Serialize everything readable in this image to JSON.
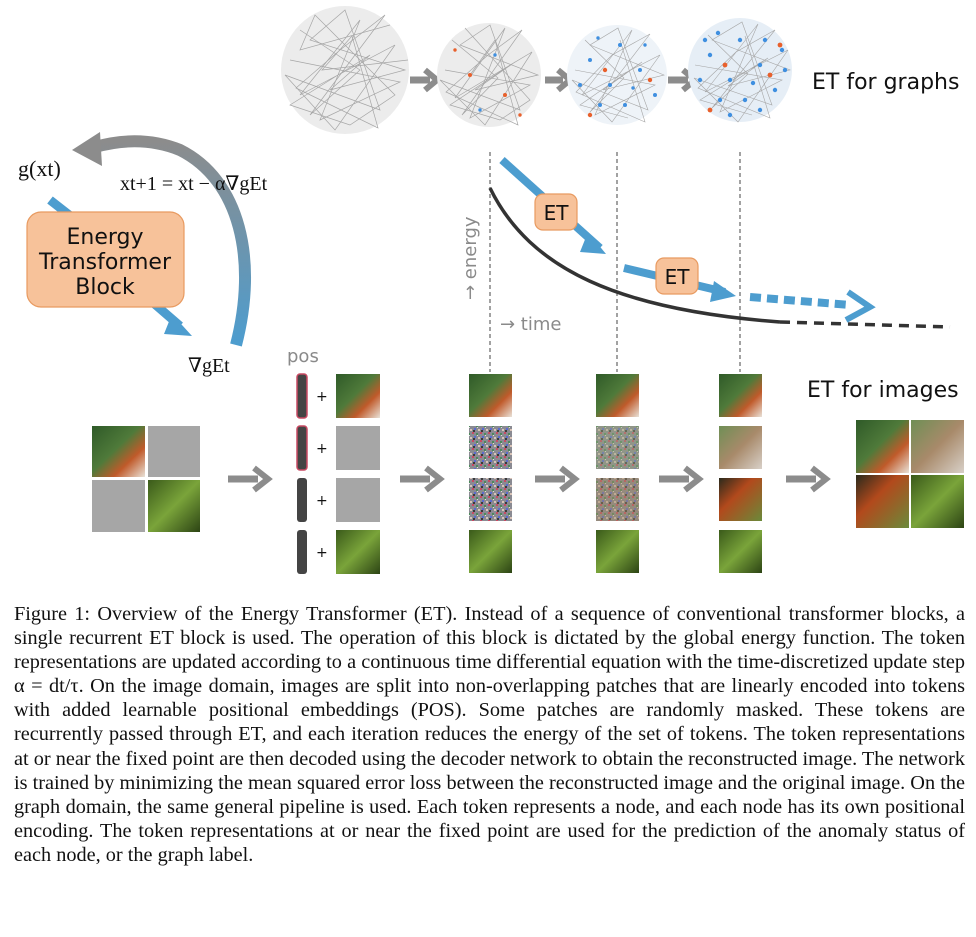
{
  "figure": {
    "label_graphs": "ET for graphs",
    "label_images": "ET for images",
    "label_pos": "pos",
    "label_energy": "→ energy",
    "label_time": "→ time",
    "et_label": "ET",
    "block_label_lines": [
      "Energy",
      "Transformer",
      "Block"
    ],
    "g_of_x": "g(xt)",
    "update_rule": "xt+1 = xt − α∇gEt",
    "gradient": "∇gEt",
    "plus_sign": "+"
  },
  "caption": {
    "figure_label": "Figure 1:",
    "text": "Overview of the Energy Transformer (ET). Instead of a sequence of conventional transformer blocks, a single recurrent ET block is used. The operation of this block is dictated by the global energy function. The token representations are updated according to a continuous time differential equation with the time-discretized update step α = dt/τ. On the image domain, images are split into non-overlapping patches that are linearly encoded into tokens with added learnable positional embeddings (POS). Some patches are randomly masked. These tokens are recurrently passed through ET, and each iteration reduces the energy of the set of tokens. The token representations at or near the fixed point are then decoded using the decoder network to obtain the reconstructed image. The network is trained by minimizing the mean squared error loss between the reconstructed image and the original image. On the graph domain, the same general pipeline is used. Each token represents a node, and each node has its own positional encoding. The token representations at or near the fixed point are used for the prediction of the anomaly status of each node, or the graph label."
  },
  "colors": {
    "blue_arrow": "#4d9dcf",
    "gray_arrow": "#8c8c8c",
    "et_box": "#f7c29a",
    "et_box_border": "#e89a60",
    "graph_node_blue": "#3f8fe0",
    "graph_node_orange": "#e8602c",
    "curve": "#333333"
  }
}
